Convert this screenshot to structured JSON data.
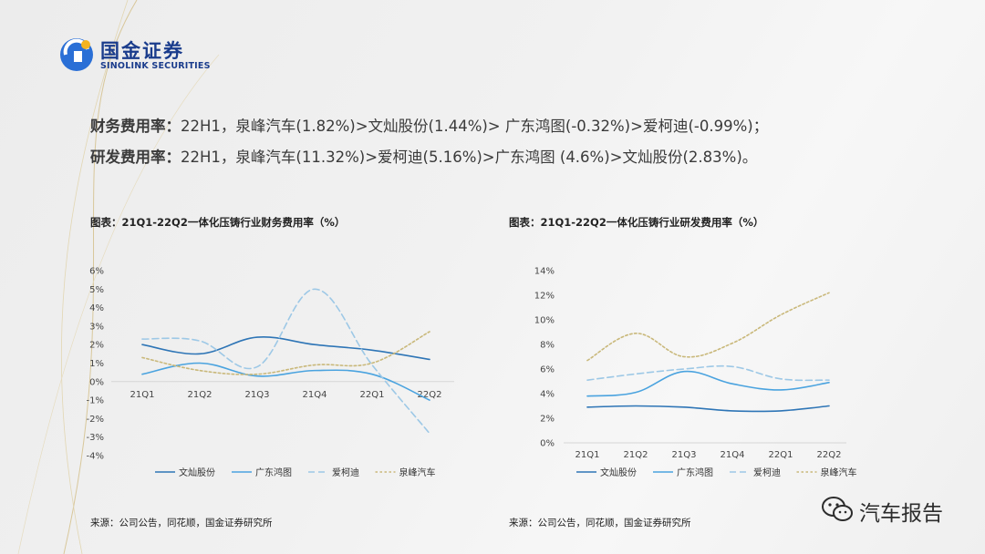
{
  "header": {
    "brand_cn": "国金证券",
    "brand_en": "SINOLINK SECURITIES"
  },
  "summary": {
    "line1_label": "财务费用率：",
    "line1_text": "22H1，泉峰汽车(1.82%)>文灿股份(1.44%)> 广东鸿图(-0.32%)>爱柯迪(-0.99%)；",
    "line2_label": "研发费用率：",
    "line2_text": "22H1，泉峰汽车(11.32%)>爱柯迪(5.16%)>广东鸿图 (4.6%)>文灿股份(2.83%)。"
  },
  "colors": {
    "wencan": "#2e75b6",
    "guangdong": "#4aa3df",
    "aikedi": "#9dc8e6",
    "quanfeng": "#c9b87a",
    "brand": "#1a3c8c"
  },
  "chart_left": {
    "title": "图表：21Q1-22Q2一体化压铸行业财务费用率（%）",
    "source": "来源：公司公告，同花顺，国金证券研究所"
  },
  "chart_right": {
    "title": "图表：21Q1-22Q2一体化压铸行业研发费用率（%）",
    "source": "来源：公司公告，同花顺，国金证券研究所"
  },
  "watermark": {
    "text": "汽车报告"
  },
  "chart_data": [
    {
      "type": "line",
      "title": "图表：21Q1-22Q2一体化压铸行业财务费用率（%）",
      "categories": [
        "21Q1",
        "21Q2",
        "21Q3",
        "21Q4",
        "22Q1",
        "22Q2"
      ],
      "ylim": [
        -4,
        6
      ],
      "yticks": [
        -4,
        -3,
        -2,
        -1,
        0,
        1,
        2,
        3,
        4,
        5,
        6
      ],
      "y_tick_labels": [
        "-4%",
        "-3%",
        "-2%",
        "-1%",
        "0%",
        "1%",
        "2%",
        "3%",
        "4%",
        "5%",
        "6%"
      ],
      "grid": false,
      "legend": "bottom",
      "series": [
        {
          "name": "文灿股份",
          "values": [
            2.0,
            1.5,
            2.4,
            2.0,
            1.7,
            1.2
          ],
          "color": "#2e75b6",
          "dash": "solid"
        },
        {
          "name": "广东鸿图",
          "values": [
            0.4,
            1.0,
            0.3,
            0.6,
            0.4,
            -1.0
          ],
          "color": "#4aa3df",
          "dash": "solid"
        },
        {
          "name": "爱柯迪",
          "values": [
            2.3,
            2.2,
            0.8,
            5.0,
            0.9,
            -2.8
          ],
          "color": "#9dc8e6",
          "dash": "dashed"
        },
        {
          "name": "泉峰汽车",
          "values": [
            1.3,
            0.6,
            0.4,
            0.9,
            1.0,
            2.7
          ],
          "color": "#c9b87a",
          "dash": "dotted"
        }
      ]
    },
    {
      "type": "line",
      "title": "图表：21Q1-22Q2一体化压铸行业研发费用率（%）",
      "categories": [
        "21Q1",
        "21Q2",
        "21Q3",
        "21Q4",
        "22Q1",
        "22Q2"
      ],
      "ylim": [
        0,
        14
      ],
      "yticks": [
        0,
        2,
        4,
        6,
        8,
        10,
        12,
        14
      ],
      "y_tick_labels": [
        "0%",
        "2%",
        "4%",
        "6%",
        "8%",
        "10%",
        "12%",
        "14%"
      ],
      "grid": false,
      "legend": "bottom",
      "series": [
        {
          "name": "文灿股份",
          "values": [
            2.9,
            3.0,
            2.9,
            2.6,
            2.6,
            3.0
          ],
          "color": "#2e75b6",
          "dash": "solid"
        },
        {
          "name": "广东鸿图",
          "values": [
            3.8,
            4.1,
            5.8,
            4.8,
            4.3,
            4.9
          ],
          "color": "#4aa3df",
          "dash": "solid"
        },
        {
          "name": "爱柯迪",
          "values": [
            5.1,
            5.6,
            6.0,
            6.2,
            5.2,
            5.1
          ],
          "color": "#9dc8e6",
          "dash": "dashed"
        },
        {
          "name": "泉峰汽车",
          "values": [
            6.7,
            8.9,
            7.0,
            8.1,
            10.4,
            12.2
          ],
          "color": "#c9b87a",
          "dash": "dotted"
        }
      ]
    }
  ]
}
